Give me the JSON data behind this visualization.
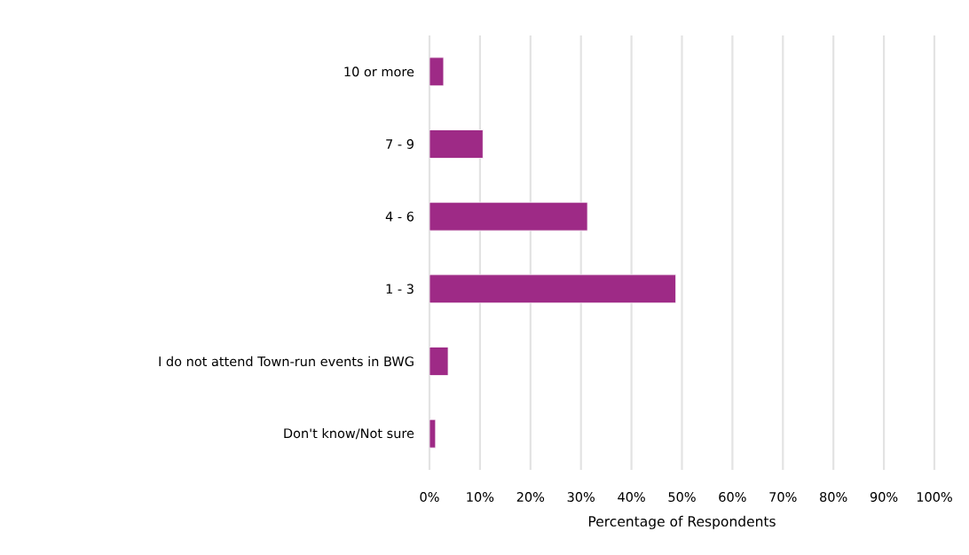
{
  "chart_data": {
    "type": "bar",
    "orientation": "horizontal",
    "xlabel": "Percentage of Respondents",
    "categories": [
      "10 or more",
      "7 - 9",
      "4 - 6",
      "1 - 3",
      "I do not attend Town-run events in BWG",
      "Don't know/Not sure"
    ],
    "values": [
      2.8,
      10.6,
      31.3,
      48.8,
      3.7,
      1.2
    ],
    "color": "#9e2a86",
    "xlim": [
      0,
      100
    ],
    "xticks": [
      {
        "value": 0,
        "label": "0%"
      },
      {
        "value": 10,
        "label": "10%"
      },
      {
        "value": 20,
        "label": "20%"
      },
      {
        "value": 30,
        "label": "30%"
      },
      {
        "value": 40,
        "label": "40%"
      },
      {
        "value": 50,
        "label": "50%"
      },
      {
        "value": 60,
        "label": "60%"
      },
      {
        "value": 70,
        "label": "70%"
      },
      {
        "value": 80,
        "label": "80%"
      },
      {
        "value": 90,
        "label": "90%"
      },
      {
        "value": 100,
        "label": "100%"
      }
    ],
    "grid": "x"
  }
}
